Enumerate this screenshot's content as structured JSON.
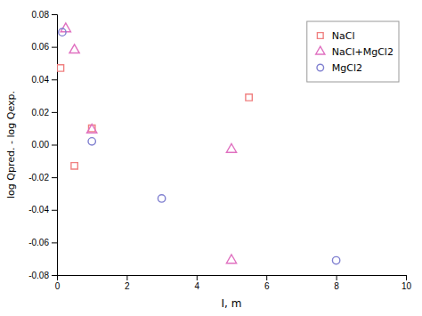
{
  "chart_data": {
    "type": "scatter",
    "x_label": "I, m",
    "y_label": "log Qpred. - log Qexp.",
    "xlim": [
      0,
      10
    ],
    "ylim": [
      -0.08,
      0.08
    ],
    "xticks": [
      0,
      2,
      4,
      6,
      8,
      10
    ],
    "yticks": [
      -0.08,
      -0.06,
      -0.04,
      -0.02,
      {
        "value": 0,
        "label": "0.00"
      },
      0.02,
      0.04,
      0.06,
      0.08
    ],
    "grid": false,
    "legend": "upper right",
    "series": [
      {
        "name": "NaCl",
        "color": "#f08080",
        "marker": "square",
        "x": [
          0.1,
          0.5,
          1.0,
          5.5
        ],
        "values": [
          0.047,
          -0.013,
          0.01,
          0.029
        ]
      },
      {
        "name": "NaCl+MgCl2",
        "color": "#e070c0",
        "marker": "triangle",
        "x": [
          0.25,
          0.5,
          1.0,
          5.0,
          5.0
        ],
        "values": [
          0.071,
          0.058,
          0.009,
          -0.003,
          -0.071
        ]
      },
      {
        "name": "MgCl2",
        "color": "#8080d0",
        "marker": "circle",
        "x": [
          0.15,
          1.0,
          3.0,
          8.0
        ],
        "values": [
          0.069,
          0.002,
          -0.033,
          -0.071
        ]
      }
    ]
  }
}
